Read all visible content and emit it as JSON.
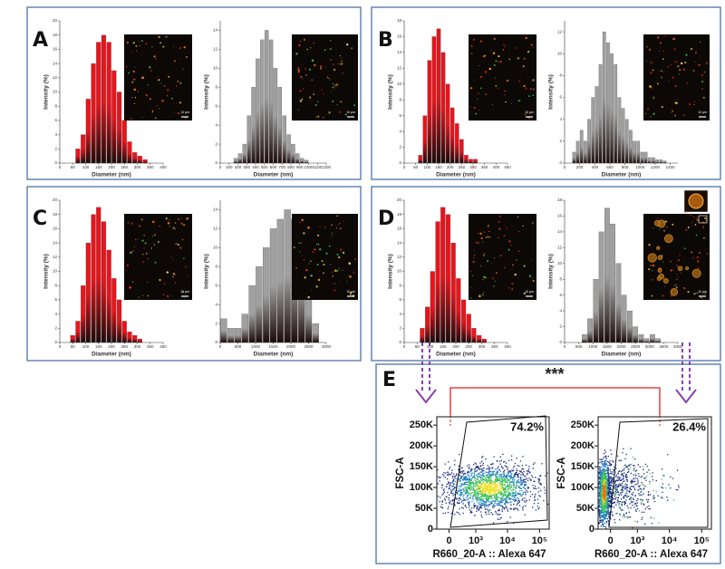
{
  "panel_labels": [
    "A",
    "B",
    "C",
    "D",
    "E"
  ],
  "significance": "***",
  "chart_data": [
    {
      "type": "histogram",
      "color": "#e8141c",
      "x_label": "Diameter (nm)",
      "y_label": "Intensity (%)",
      "scale_bar": "10 µm",
      "bins": [
        60,
        80,
        100,
        120,
        140,
        160,
        180,
        200,
        220,
        240,
        260,
        280,
        300,
        320,
        340
      ],
      "counts": [
        2,
        4,
        9,
        14,
        17,
        18,
        17,
        13,
        10,
        6,
        3,
        1.5,
        1,
        0.5
      ],
      "xlim": [
        0,
        400
      ],
      "xticks": [
        0,
        50,
        100,
        150,
        200,
        250,
        300,
        350,
        400
      ],
      "ylim": [
        0,
        20
      ],
      "yticks": [
        0,
        2,
        4,
        6,
        8,
        10,
        12,
        14,
        16,
        18,
        20
      ]
    },
    {
      "type": "histogram",
      "color": "#a0a0a0",
      "x_label": "Diameter (nm)",
      "y_label": "Intensity (%)",
      "scale_bar": "10 µm",
      "bins": [
        150,
        200,
        250,
        300,
        350,
        400,
        450,
        500,
        550,
        600,
        650,
        700,
        750,
        800,
        850,
        900,
        950,
        1000
      ],
      "counts": [
        0.5,
        1,
        2,
        5,
        8,
        11,
        13,
        14,
        13,
        10,
        8,
        5,
        3,
        2,
        1,
        0.5,
        0.3
      ],
      "xlim": [
        0,
        1200
      ],
      "xticks": [
        0,
        100,
        200,
        300,
        400,
        500,
        600,
        700,
        800,
        900,
        1000,
        1100,
        1200
      ],
      "ylim": [
        0,
        15
      ],
      "yticks": [
        0,
        2,
        4,
        6,
        8,
        10,
        12,
        14
      ]
    },
    {
      "type": "histogram",
      "color": "#e8141c",
      "x_label": "Diameter (nm)",
      "y_label": "Intensity (%)",
      "scale_bar": "10 µm",
      "bins": [
        60,
        80,
        100,
        120,
        140,
        160,
        180,
        200,
        220,
        240,
        260,
        280,
        300,
        320
      ],
      "counts": [
        1,
        6,
        13,
        16,
        17,
        14,
        10,
        7,
        5,
        3,
        1,
        0.5,
        0.5
      ],
      "xlim": [
        0,
        450
      ],
      "xticks": [
        0,
        50,
        100,
        150,
        200,
        250,
        300,
        350,
        400,
        450
      ],
      "ylim": [
        0,
        18
      ],
      "yticks": [
        0,
        2,
        4,
        6,
        8,
        10,
        12,
        14,
        16,
        18
      ]
    },
    {
      "type": "histogram",
      "color": "#a0a0a0",
      "x_label": "Diameter (nm)",
      "y_label": "Intensity (%)",
      "scale_bar": "10 µm",
      "bins": [
        100,
        150,
        200,
        250,
        300,
        350,
        400,
        450,
        500,
        550,
        600,
        650,
        700,
        750,
        800,
        850,
        900,
        950,
        1000,
        1050,
        1100,
        1150,
        1200,
        1250,
        1300,
        1350
      ],
      "counts": [
        1,
        2,
        3,
        2,
        4,
        6,
        7,
        9,
        12,
        11,
        10,
        9,
        6,
        5,
        4,
        3,
        2,
        2,
        1,
        1,
        0.5,
        0.5,
        0.3,
        0.3,
        0.2
      ],
      "xlim": [
        0,
        1500
      ],
      "xticks": [
        0,
        200,
        400,
        600,
        800,
        1000,
        1200,
        1400
      ],
      "ylim": [
        0,
        13
      ],
      "yticks": [
        0,
        2,
        4,
        6,
        8,
        10,
        12
      ]
    },
    {
      "type": "histogram",
      "color": "#e8141c",
      "x_label": "Diameter (nm)",
      "y_label": "Intensity (%)",
      "scale_bar": "10 µm",
      "bins": [
        40,
        60,
        80,
        100,
        120,
        140,
        160,
        180,
        200,
        220,
        240,
        260,
        280,
        300,
        320
      ],
      "counts": [
        1,
        3,
        8,
        14,
        18,
        19,
        17,
        13,
        9,
        6,
        3,
        1.5,
        1,
        0.5
      ],
      "xlim": [
        0,
        400
      ],
      "xticks": [
        0,
        50,
        100,
        150,
        200,
        250,
        300,
        350,
        400
      ],
      "ylim": [
        0,
        20
      ],
      "yticks": [
        0,
        2,
        4,
        6,
        8,
        10,
        12,
        14,
        16,
        18,
        20
      ]
    },
    {
      "type": "histogram",
      "color": "#a0a0a0",
      "x_label": "Diameter (nm)",
      "y_label": "Intensity (%)",
      "scale_bar": "10 µm",
      "bins": [
        0,
        200,
        400,
        600,
        800,
        1000,
        1200,
        1400,
        1600,
        1800,
        2000,
        2200,
        2400,
        2600,
        2800
      ],
      "counts": [
        2.5,
        1.5,
        1.5,
        3,
        6,
        8,
        10,
        12,
        13,
        14,
        13,
        11,
        6,
        2
      ],
      "xlim": [
        0,
        3000
      ],
      "xticks": [
        0,
        500,
        1000,
        1500,
        2000,
        2500,
        3000
      ],
      "ylim": [
        0,
        15
      ],
      "yticks": [
        0,
        2,
        4,
        6,
        8,
        10,
        12,
        14
      ]
    },
    {
      "type": "histogram",
      "color": "#e8141c",
      "x_label": "Diameter (nm)",
      "y_label": "Intensity (%)",
      "scale_bar": "10 µm",
      "bins": [
        60,
        80,
        100,
        120,
        140,
        160,
        180,
        200,
        220,
        240,
        260,
        280,
        300,
        320
      ],
      "counts": [
        2,
        5,
        10,
        17,
        19,
        18,
        14,
        9,
        6,
        4,
        2,
        1,
        0.5
      ],
      "xlim": [
        0,
        400
      ],
      "xticks": [
        0,
        50,
        100,
        150,
        200,
        250,
        300,
        350,
        400
      ],
      "ylim": [
        0,
        20
      ],
      "yticks": [
        0,
        2,
        4,
        6,
        8,
        10,
        12,
        14,
        16,
        18,
        20
      ]
    },
    {
      "type": "histogram",
      "color": "#a0a0a0",
      "x_label": "Diameter (nm)",
      "y_label": "Intensity (%)",
      "scale_bar": "10 µm",
      "bins": [
        600,
        800,
        1000,
        1200,
        1400,
        1600,
        1800,
        2000,
        2200,
        2400,
        2600,
        2800,
        3000,
        3200,
        3400
      ],
      "counts": [
        1,
        3,
        8,
        14,
        17,
        15,
        10,
        6,
        4,
        2,
        1,
        0.5,
        1,
        0.5
      ],
      "xlim": [
        0,
        4000
      ],
      "xticks": [
        0,
        500,
        1000,
        1500,
        2000,
        2500,
        3000,
        3500,
        4000
      ],
      "ylim": [
        0,
        18
      ],
      "yticks": [
        0,
        2,
        4,
        6,
        8,
        10,
        12,
        14,
        16,
        18
      ]
    },
    {
      "type": "flow-density",
      "x_label": "R660_20-A :: Alexa 647",
      "y_label": "FSC-A",
      "gate_label": "74.2%",
      "xscale": "biexponential",
      "xlim": [
        -300,
        200000
      ],
      "xticks": [
        0,
        {
          "value": 1000,
          "label": "10³"
        },
        {
          "value": 10000,
          "label": "10⁴"
        },
        {
          "value": 100000,
          "label": "10⁵"
        }
      ],
      "ylim": [
        0,
        270000
      ],
      "yticks": [
        0,
        {
          "value": 50000,
          "label": "50K"
        },
        {
          "value": 100000,
          "label": "100K"
        },
        {
          "value": 150000,
          "label": "150K"
        },
        {
          "value": 200000,
          "label": "200K"
        },
        {
          "value": 250000,
          "label": "250K"
        }
      ]
    },
    {
      "type": "flow-density",
      "x_label": "R660_20-A :: Alexa 647",
      "y_label": "FSC-A",
      "gate_label": "26.4%",
      "xscale": "biexponential",
      "xlim": [
        -300,
        200000
      ],
      "xticks": [
        0,
        {
          "value": 1000,
          "label": "10³"
        },
        {
          "value": 10000,
          "label": "10⁴"
        },
        {
          "value": 100000,
          "label": "10⁵"
        }
      ],
      "ylim": [
        0,
        270000
      ],
      "yticks": [
        0,
        {
          "value": 50000,
          "label": "50K"
        },
        {
          "value": 100000,
          "label": "100K"
        },
        {
          "value": 150000,
          "label": "150K"
        },
        {
          "value": 200000,
          "label": "200K"
        },
        {
          "value": 250000,
          "label": "250K"
        }
      ]
    }
  ]
}
